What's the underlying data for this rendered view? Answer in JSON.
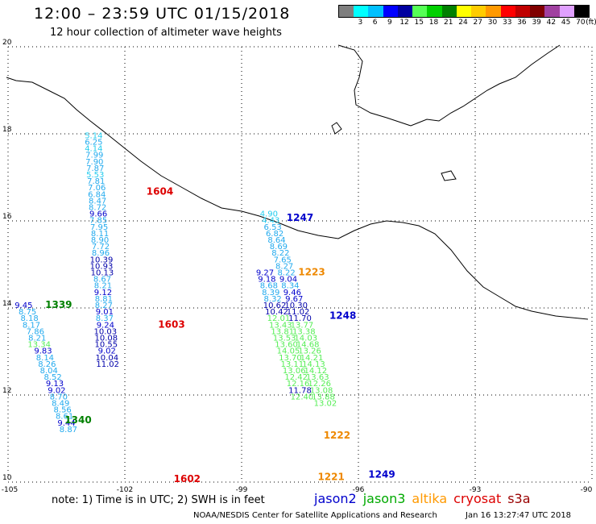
{
  "header": {
    "title": "12:00 – 23:59 UTC 01/15/2018",
    "subtitle": "12 hour collection of altimeter wave heights"
  },
  "scale": {
    "unit": "(ft)",
    "bins": [
      {
        "label": "",
        "color": "#7f7f7f"
      },
      {
        "label": "3",
        "color": "#00ffff"
      },
      {
        "label": "6",
        "color": "#00c0ff"
      },
      {
        "label": "9",
        "color": "#0000ff"
      },
      {
        "label": "12",
        "color": "#0000a0"
      },
      {
        "label": "15",
        "color": "#55ff55"
      },
      {
        "label": "18",
        "color": "#00d000"
      },
      {
        "label": "21",
        "color": "#008000"
      },
      {
        "label": "24",
        "color": "#ffff00"
      },
      {
        "label": "27",
        "color": "#ffcc00"
      },
      {
        "label": "30",
        "color": "#ff9900"
      },
      {
        "label": "33",
        "color": "#ff0000"
      },
      {
        "label": "36",
        "color": "#c00000"
      },
      {
        "label": "39",
        "color": "#800000"
      },
      {
        "label": "42",
        "color": "#a040a0"
      },
      {
        "label": "45",
        "color": "#e0a0ff"
      },
      {
        "label": "70",
        "color": "#000000"
      }
    ]
  },
  "axes": {
    "lon_labels": [
      "-105",
      "-102",
      "-99",
      "-96",
      "-93",
      "-90"
    ],
    "lat_labels": [
      "20",
      "18",
      "16",
      "14",
      "12",
      "10"
    ],
    "lon_range": [
      -105,
      -90
    ],
    "lat_range": [
      10,
      20
    ]
  },
  "tracks": [
    {
      "id": "1604",
      "id_color": "#dd0000",
      "id_pos": {
        "lon": -101.1,
        "lat": 16.6
      },
      "points": [
        {
          "v": "5.14",
          "c": "#22ccee",
          "lon": -102.8,
          "lat": 17.9
        },
        {
          "v": "6.25",
          "c": "#22aaee",
          "lon": -102.8,
          "lat": 17.75
        },
        {
          "v": "4.14",
          "c": "#22ccee",
          "lon": -102.8,
          "lat": 17.6
        },
        {
          "v": "7.99",
          "c": "#22aaee",
          "lon": -102.78,
          "lat": 17.45
        },
        {
          "v": "7.90",
          "c": "#22aaee",
          "lon": -102.78,
          "lat": 17.3
        },
        {
          "v": "7.87",
          "c": "#22aaee",
          "lon": -102.76,
          "lat": 17.15
        },
        {
          "v": "5.53",
          "c": "#22ccee",
          "lon": -102.76,
          "lat": 17.0
        },
        {
          "v": "7.81",
          "c": "#22aaee",
          "lon": -102.74,
          "lat": 16.85
        },
        {
          "v": "7.06",
          "c": "#22aaee",
          "lon": -102.72,
          "lat": 16.7
        },
        {
          "v": "6.84",
          "c": "#22aaee",
          "lon": -102.72,
          "lat": 16.55
        },
        {
          "v": "8.47",
          "c": "#22aaee",
          "lon": -102.7,
          "lat": 16.4
        },
        {
          "v": "8.72",
          "c": "#22aaee",
          "lon": -102.7,
          "lat": 16.25
        },
        {
          "v": "9.66",
          "c": "#0000cc",
          "lon": -102.68,
          "lat": 16.1
        },
        {
          "v": "7.85",
          "c": "#22aaee",
          "lon": -102.68,
          "lat": 15.95
        },
        {
          "v": "7.95",
          "c": "#22aaee",
          "lon": -102.66,
          "lat": 15.8
        },
        {
          "v": "8.11",
          "c": "#22aaee",
          "lon": -102.64,
          "lat": 15.65
        },
        {
          "v": "8.90",
          "c": "#22aaee",
          "lon": -102.64,
          "lat": 15.5
        },
        {
          "v": "7.72",
          "c": "#22aaee",
          "lon": -102.62,
          "lat": 15.35
        },
        {
          "v": "8.96",
          "c": "#22aaee",
          "lon": -102.62,
          "lat": 15.2
        }
      ]
    },
    {
      "id": "1603",
      "id_color": "#dd0000",
      "id_pos": {
        "lon": -100.8,
        "lat": 13.55
      },
      "points": [
        {
          "v": "10.39",
          "c": "#0000aa",
          "lon": -102.6,
          "lat": 15.05
        },
        {
          "v": "10.93",
          "c": "#0000aa",
          "lon": -102.6,
          "lat": 14.9
        },
        {
          "v": "10.13",
          "c": "#0000aa",
          "lon": -102.58,
          "lat": 14.75
        },
        {
          "v": "8.67",
          "c": "#22aaee",
          "lon": -102.58,
          "lat": 14.6
        },
        {
          "v": "8.21",
          "c": "#22aaee",
          "lon": -102.56,
          "lat": 14.45
        },
        {
          "v": "9.12",
          "c": "#0000cc",
          "lon": -102.56,
          "lat": 14.3
        },
        {
          "v": "8.81",
          "c": "#22aaee",
          "lon": -102.54,
          "lat": 14.15
        },
        {
          "v": "8.27",
          "c": "#22aaee",
          "lon": -102.54,
          "lat": 14.0
        },
        {
          "v": "9.01",
          "c": "#0000cc",
          "lon": -102.52,
          "lat": 13.85
        },
        {
          "v": "8.37",
          "c": "#22aaee",
          "lon": -102.52,
          "lat": 13.7
        },
        {
          "v": "9.24",
          "c": "#0000cc",
          "lon": -102.5,
          "lat": 13.55
        }
      ]
    },
    {
      "id": "1602",
      "id_color": "#dd0000",
      "id_pos": {
        "lon": -100.4,
        "lat": 10.0
      },
      "points": [
        {
          "v": "10.03",
          "c": "#0000aa",
          "lon": -102.5,
          "lat": 13.4
        },
        {
          "v": "10.08",
          "c": "#0000aa",
          "lon": -102.48,
          "lat": 13.25
        },
        {
          "v": "10.55",
          "c": "#0000aa",
          "lon": -102.48,
          "lat": 13.1
        },
        {
          "v": "9.02",
          "c": "#0000cc",
          "lon": -102.46,
          "lat": 12.95
        },
        {
          "v": "10.04",
          "c": "#0000aa",
          "lon": -102.46,
          "lat": 12.8
        },
        {
          "v": "11.02",
          "c": "#0000aa",
          "lon": -102.44,
          "lat": 12.65
        }
      ]
    },
    {
      "id": "1339",
      "id_color": "#008000",
      "id_pos": {
        "lon": -103.7,
        "lat": 14.0
      },
      "points": [
        {
          "v": "9.45",
          "c": "#0000cc",
          "lon": -104.6,
          "lat": 14.0
        },
        {
          "v": "8.75",
          "c": "#22aaee",
          "lon": -104.5,
          "lat": 13.85
        },
        {
          "v": "8.18",
          "c": "#22aaee",
          "lon": -104.45,
          "lat": 13.7
        },
        {
          "v": "8.17",
          "c": "#22aaee",
          "lon": -104.4,
          "lat": 13.55
        },
        {
          "v": "7.86",
          "c": "#22aaee",
          "lon": -104.3,
          "lat": 13.4
        },
        {
          "v": "8.21",
          "c": "#22aaee",
          "lon": -104.25,
          "lat": 13.25
        },
        {
          "v": "13.34",
          "c": "#55ee55",
          "lon": -104.2,
          "lat": 13.1
        },
        {
          "v": "9.83",
          "c": "#0000cc",
          "lon": -104.1,
          "lat": 12.95
        },
        {
          "v": "8.14",
          "c": "#22aaee",
          "lon": -104.05,
          "lat": 12.8
        },
        {
          "v": "8.26",
          "c": "#22aaee",
          "lon": -104.0,
          "lat": 12.65
        },
        {
          "v": "8.04",
          "c": "#22aaee",
          "lon": -103.95,
          "lat": 12.5
        }
      ]
    },
    {
      "id": "1340",
      "id_color": "#008000",
      "id_pos": {
        "lon": -103.2,
        "lat": 11.35
      },
      "points": [
        {
          "v": "8.52",
          "c": "#22aaee",
          "lon": -103.85,
          "lat": 12.35
        },
        {
          "v": "9.13",
          "c": "#0000cc",
          "lon": -103.8,
          "lat": 12.2
        },
        {
          "v": "9.02",
          "c": "#0000cc",
          "lon": -103.75,
          "lat": 12.05
        },
        {
          "v": "8.70",
          "c": "#22aaee",
          "lon": -103.7,
          "lat": 11.9
        },
        {
          "v": "8.49",
          "c": "#22aaee",
          "lon": -103.65,
          "lat": 11.75
        },
        {
          "v": "8.56",
          "c": "#22aaee",
          "lon": -103.6,
          "lat": 11.6
        },
        {
          "v": "8.61",
          "c": "#22aaee",
          "lon": -103.55,
          "lat": 11.45
        },
        {
          "v": "9.44",
          "c": "#0000cc",
          "lon": -103.5,
          "lat": 11.3
        },
        {
          "v": "8.87",
          "c": "#22aaee",
          "lon": -103.45,
          "lat": 11.15
        }
      ]
    },
    {
      "id": "1247",
      "id_color": "#0000cc",
      "id_pos": {
        "lon": -97.5,
        "lat": 16.0
      },
      "points": [
        {
          "v": "4.90",
          "c": "#22ccee",
          "lon": -98.3,
          "lat": 16.1
        },
        {
          "v": "4.43",
          "c": "#22ccee",
          "lon": -98.25,
          "lat": 15.95
        },
        {
          "v": "6.53",
          "c": "#22aaee",
          "lon": -98.2,
          "lat": 15.8
        },
        {
          "v": "6.82",
          "c": "#22aaee",
          "lon": -98.15,
          "lat": 15.65
        },
        {
          "v": "8.64",
          "c": "#22aaee",
          "lon": -98.1,
          "lat": 15.5
        },
        {
          "v": "8.69",
          "c": "#22aaee",
          "lon": -98.05,
          "lat": 15.35
        },
        {
          "v": "8.22",
          "c": "#22aaee",
          "lon": -98.0,
          "lat": 15.2
        },
        {
          "v": "7.65",
          "c": "#22aaee",
          "lon": -97.95,
          "lat": 15.05
        },
        {
          "v": "8.27",
          "c": "#22aaee",
          "lon": -97.9,
          "lat": 14.9
        },
        {
          "v": "8.22",
          "c": "#22aaee",
          "lon": -97.85,
          "lat": 14.75
        },
        {
          "v": "9.04",
          "c": "#0000cc",
          "lon": -97.8,
          "lat": 14.6
        },
        {
          "v": "8.34",
          "c": "#22aaee",
          "lon": -97.75,
          "lat": 14.45
        }
      ]
    },
    {
      "id": "1223",
      "id_color": "#ee8800",
      "id_pos": {
        "lon": -97.2,
        "lat": 14.75
      },
      "points": [
        {
          "v": "9.27",
          "c": "#0000cc",
          "lon": -98.4,
          "lat": 14.75
        },
        {
          "v": "9.18",
          "c": "#0000cc",
          "lon": -98.35,
          "lat": 14.6
        },
        {
          "v": "8.68",
          "c": "#22aaee",
          "lon": -98.3,
          "lat": 14.45
        },
        {
          "v": "8.39",
          "c": "#22aaee",
          "lon": -98.25,
          "lat": 14.3
        },
        {
          "v": "8.32",
          "c": "#22aaee",
          "lon": -98.2,
          "lat": 14.15
        }
      ]
    },
    {
      "id": "1248",
      "id_color": "#0000cc",
      "id_pos": {
        "lon": -96.4,
        "lat": 13.75
      },
      "points": [
        {
          "v": "9.46",
          "c": "#0000cc",
          "lon": -97.7,
          "lat": 14.3
        },
        {
          "v": "9.67",
          "c": "#0000cc",
          "lon": -97.65,
          "lat": 14.15
        },
        {
          "v": "10.30",
          "c": "#0000aa",
          "lon": -97.6,
          "lat": 14.0
        },
        {
          "v": "10.62",
          "c": "#0000aa",
          "lon": -98.15,
          "lat": 14.0
        },
        {
          "v": "10.42",
          "c": "#0000aa",
          "lon": -98.1,
          "lat": 13.85
        },
        {
          "v": "11.02",
          "c": "#0000aa",
          "lon": -97.55,
          "lat": 13.85
        },
        {
          "v": "11.70",
          "c": "#0000aa",
          "lon": -97.5,
          "lat": 13.7
        }
      ]
    },
    {
      "id": "1222",
      "id_color": "#ee8800",
      "id_pos": {
        "lon": -96.55,
        "lat": 11.0
      },
      "points": [
        {
          "v": "12.01",
          "c": "#55ee55",
          "lon": -98.05,
          "lat": 13.7
        },
        {
          "v": "13.43",
          "c": "#55ee55",
          "lon": -98.0,
          "lat": 13.55
        },
        {
          "v": "13.81",
          "c": "#55ee55",
          "lon": -97.95,
          "lat": 13.4
        },
        {
          "v": "13.53",
          "c": "#55ee55",
          "lon": -97.9,
          "lat": 13.25
        },
        {
          "v": "13.60",
          "c": "#55ee55",
          "lon": -97.85,
          "lat": 13.1
        },
        {
          "v": "14.05",
          "c": "#55ee55",
          "lon": -97.8,
          "lat": 12.95
        },
        {
          "v": "13.70",
          "c": "#55ee55",
          "lon": -97.75,
          "lat": 12.8
        },
        {
          "v": "13.11",
          "c": "#55ee55",
          "lon": -97.7,
          "lat": 12.65
        },
        {
          "v": "13.06",
          "c": "#55ee55",
          "lon": -97.65,
          "lat": 12.5
        },
        {
          "v": "12.42",
          "c": "#55ee55",
          "lon": -97.6,
          "lat": 12.35
        },
        {
          "v": "12.16",
          "c": "#55ee55",
          "lon": -97.55,
          "lat": 12.2
        },
        {
          "v": "11.78",
          "c": "#0000aa",
          "lon": -97.5,
          "lat": 12.05
        },
        {
          "v": "12.40",
          "c": "#55ee55",
          "lon": -97.45,
          "lat": 11.9
        }
      ]
    },
    {
      "id": "1249",
      "id_color": "#0000cc",
      "id_pos": {
        "lon": -95.4,
        "lat": 10.1
      },
      "points": [
        {
          "v": "13.77",
          "c": "#55ee55",
          "lon": -97.45,
          "lat": 13.55
        },
        {
          "v": "13.38",
          "c": "#55ee55",
          "lon": -97.4,
          "lat": 13.4
        },
        {
          "v": "14.03",
          "c": "#55ee55",
          "lon": -97.35,
          "lat": 13.25
        },
        {
          "v": "14.68",
          "c": "#55ee55",
          "lon": -97.3,
          "lat": 13.1
        },
        {
          "v": "13.26",
          "c": "#55ee55",
          "lon": -97.25,
          "lat": 12.95
        },
        {
          "v": "14.21",
          "c": "#55ee55",
          "lon": -97.2,
          "lat": 12.8
        },
        {
          "v": "14.13",
          "c": "#55ee55",
          "lon": -97.15,
          "lat": 12.65
        },
        {
          "v": "14.12",
          "c": "#55ee55",
          "lon": -97.1,
          "lat": 12.5
        },
        {
          "v": "13.63",
          "c": "#55ee55",
          "lon": -97.05,
          "lat": 12.35
        },
        {
          "v": "12.26",
          "c": "#55ee55",
          "lon": -97.0,
          "lat": 12.2
        },
        {
          "v": "13.08",
          "c": "#55ee55",
          "lon": -96.95,
          "lat": 12.05
        },
        {
          "v": "13.88",
          "c": "#55ee55",
          "lon": -96.9,
          "lat": 11.9
        },
        {
          "v": "13.02",
          "c": "#55ee55",
          "lon": -96.85,
          "lat": 11.75
        }
      ]
    },
    {
      "id": "1221",
      "id_color": "#ee8800",
      "id_pos": {
        "lon": -96.7,
        "lat": 10.05
      },
      "points": []
    }
  ],
  "footer": {
    "note": "note: 1) Time is in UTC; 2) SWH is in feet",
    "satellites": [
      {
        "name": "jason2",
        "color": "#0000cc"
      },
      {
        "name": "jason3",
        "color": "#00aa00"
      },
      {
        "name": "altika",
        "color": "#ff9900"
      },
      {
        "name": "cryosat",
        "color": "#dd0000"
      },
      {
        "name": "s3a",
        "color": "#990000"
      }
    ],
    "credit": "NOAA/NESDIS Center for Satellite Applications and Research",
    "timestamp": "Jan 16 13:27:47 UTC 2018"
  }
}
